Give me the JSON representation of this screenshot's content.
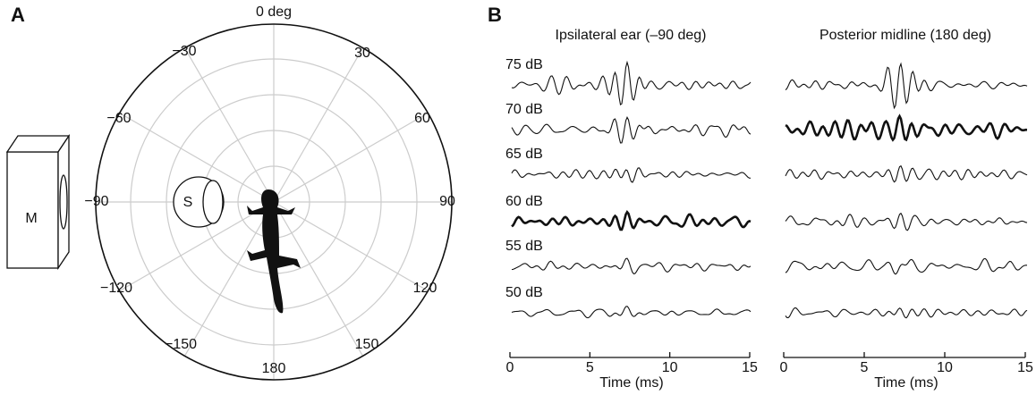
{
  "panel_a": {
    "label": "A",
    "top_label": "0 deg",
    "angle_labels": [
      "30",
      "60",
      "90",
      "120",
      "150",
      "180",
      "−150",
      "−120",
      "−90",
      "−60",
      "−30"
    ],
    "speaker": "M",
    "source": "S"
  },
  "panel_b": {
    "label": "B",
    "columns": [
      {
        "title": "Ipsilateral ear (–90 deg)"
      },
      {
        "title": "Posterior midline (180 deg)"
      }
    ],
    "levels": [
      "75 dB",
      "70 dB",
      "65 dB",
      "60 dB",
      "55 dB",
      "50 dB"
    ],
    "time_axis": {
      "label": "Time (ms)",
      "lim": [
        0,
        15
      ],
      "ticks": [
        0,
        5,
        10,
        15
      ]
    }
  }
}
